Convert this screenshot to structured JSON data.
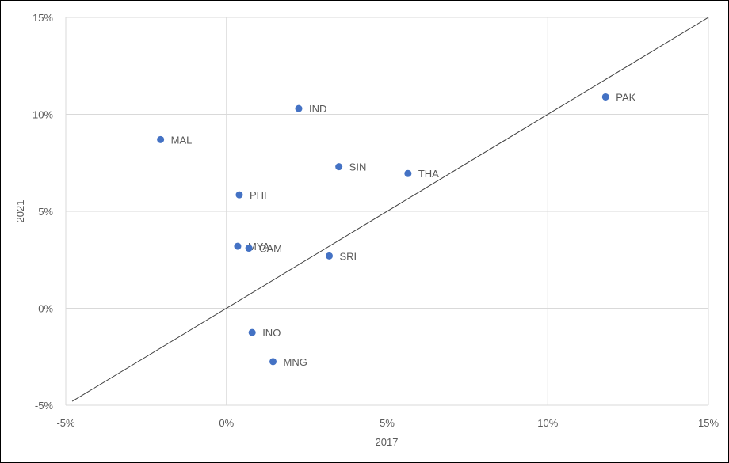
{
  "chart_data": {
    "type": "scatter",
    "title": "",
    "xlabel": "2017",
    "ylabel": "2021",
    "xlim": [
      -5,
      15
    ],
    "ylim": [
      -5,
      15
    ],
    "xticks": [
      "-5%",
      "0%",
      "5%",
      "10%",
      "15%"
    ],
    "yticks": [
      "-5%",
      "0%",
      "5%",
      "10%",
      "15%"
    ],
    "grid": true,
    "reference_line": "45-degree line",
    "marker_color": "#4472C4",
    "points": [
      {
        "label": "PAK",
        "x": 11.8,
        "y": 10.9
      },
      {
        "label": "IND",
        "x": 2.25,
        "y": 10.3
      },
      {
        "label": "MAL",
        "x": -2.05,
        "y": 8.7
      },
      {
        "label": "SIN",
        "x": 3.5,
        "y": 7.3
      },
      {
        "label": "THA",
        "x": 5.65,
        "y": 6.95
      },
      {
        "label": "PHI",
        "x": 0.4,
        "y": 5.85
      },
      {
        "label": "MYA",
        "x": 0.35,
        "y": 3.2
      },
      {
        "label": "CAM",
        "x": 0.7,
        "y": 3.1
      },
      {
        "label": "SRI",
        "x": 3.2,
        "y": 2.7
      },
      {
        "label": "INO",
        "x": 0.8,
        "y": -1.25
      },
      {
        "label": "MNG",
        "x": 1.45,
        "y": -2.75
      }
    ]
  }
}
